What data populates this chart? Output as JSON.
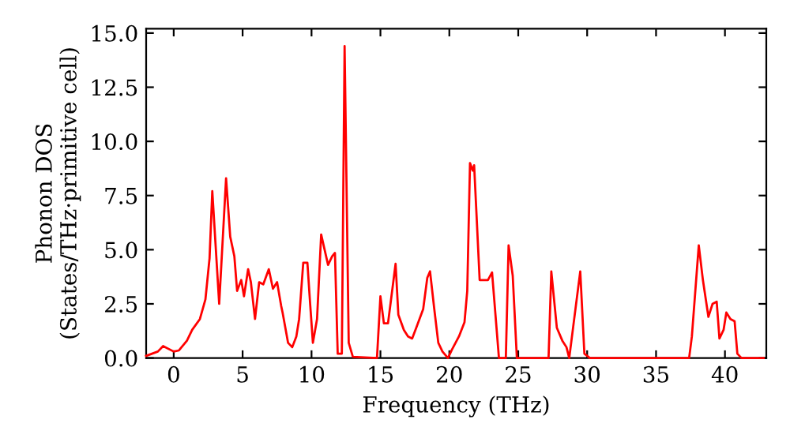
{
  "chart_data": {
    "type": "line",
    "xlabel": "Frequency (THz)",
    "ylabel": "Phonon DOS\n(States/THz·primitive cell)",
    "xlim": [
      -2,
      43
    ],
    "ylim": [
      0,
      15.2
    ],
    "xticks": [
      0,
      5,
      10,
      15,
      20,
      25,
      30,
      35,
      40
    ],
    "yticks": [
      {
        "value": 0,
        "label": "0.0"
      },
      {
        "value": 2.5,
        "label": "2.5"
      },
      {
        "value": 5,
        "label": "5.0"
      },
      {
        "value": 7.5,
        "label": "7.5"
      },
      {
        "value": 10,
        "label": "10.0"
      },
      {
        "value": 12.5,
        "label": "12.5"
      },
      {
        "value": 15,
        "label": "15.0"
      }
    ],
    "grid": false,
    "legend": false,
    "marker": "none",
    "line_style": "solid",
    "series": [
      {
        "color": "#ff0000",
        "x": [
          -2.0,
          -1.15,
          -0.77,
          0,
          0.38,
          0.96,
          1.34,
          1.9,
          2.3,
          2.6,
          2.8,
          3.3,
          3.8,
          4.1,
          4.4,
          4.6,
          4.9,
          5.1,
          5.4,
          5.6,
          5.9,
          6.2,
          6.5,
          6.9,
          7.2,
          7.5,
          7.8,
          7.9,
          8.3,
          8.6,
          8.9,
          9.1,
          9.4,
          9.7,
          9.9,
          10.1,
          10.4,
          10.7,
          11.2,
          11.5,
          11.7,
          11.9,
          12.2,
          12.4,
          12.7,
          13.0,
          14.75,
          15.0,
          15.25,
          15.55,
          16.1,
          16.3,
          16.7,
          17.0,
          17.3,
          17.6,
          18.1,
          18.4,
          18.6,
          18.9,
          19.2,
          19.5,
          19.9,
          20.2,
          20.7,
          21.1,
          21.3,
          21.5,
          21.7,
          21.8,
          22.2,
          22.8,
          23.1,
          23.6,
          24.1,
          24.3,
          24.6,
          24.9,
          27.2,
          27.4,
          27.8,
          28.2,
          28.5,
          28.7,
          29.0,
          29.5,
          29.8,
          30.2,
          37.4,
          37.6,
          38.1,
          38.4,
          38.8,
          39.1,
          39.4,
          39.6,
          39.9,
          40.1,
          40.4,
          40.7,
          40.9,
          41.2,
          42.8
        ],
        "values": [
          0.1,
          0.3,
          0.55,
          0.3,
          0.35,
          0.8,
          1.3,
          1.8,
          2.7,
          4.6,
          7.7,
          2.5,
          8.3,
          5.6,
          4.7,
          3.1,
          3.6,
          2.85,
          4.1,
          3.5,
          1.8,
          3.5,
          3.4,
          4.1,
          3.2,
          3.5,
          2.4,
          2.1,
          0.7,
          0.5,
          1.0,
          1.8,
          4.4,
          4.4,
          2.5,
          0.7,
          1.8,
          5.7,
          4.3,
          4.7,
          4.85,
          0.2,
          0.2,
          14.4,
          0.7,
          0.05,
          0,
          2.85,
          1.6,
          1.6,
          4.35,
          2.0,
          1.3,
          1.0,
          0.9,
          1.4,
          2.25,
          3.7,
          4.0,
          2.3,
          0.7,
          0.3,
          0,
          0.4,
          1.0,
          1.65,
          3.1,
          9.0,
          8.65,
          8.9,
          3.6,
          3.6,
          3.95,
          0,
          0,
          5.2,
          3.8,
          0,
          0,
          4.0,
          1.4,
          0.8,
          0.5,
          0,
          1.5,
          4.0,
          0.2,
          0,
          0,
          1.0,
          5.2,
          3.6,
          1.9,
          2.5,
          2.6,
          0.9,
          1.3,
          2.1,
          1.8,
          1.7,
          0.2,
          0,
          0
        ]
      }
    ]
  }
}
